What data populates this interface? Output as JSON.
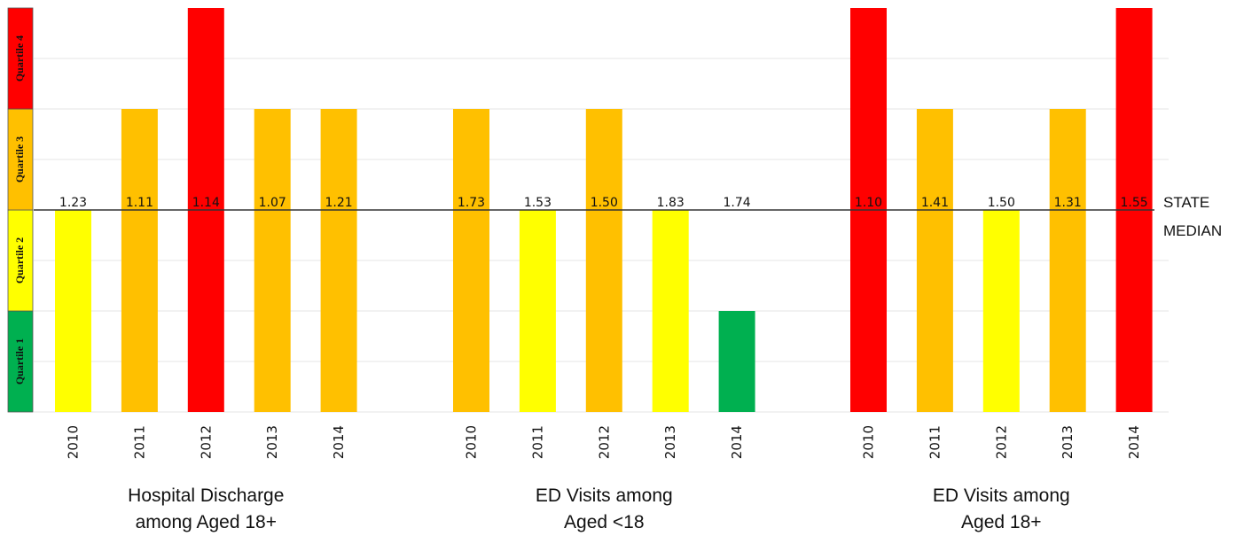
{
  "colors": {
    "quartile_1": "#00b050",
    "quartile_2": "#ffff00",
    "quartile_3": "#ffc000",
    "quartile_4": "#ff0000",
    "gridline": "#e6e6e6",
    "median_line": "#333333"
  },
  "chart_data": {
    "type": "bar",
    "y_axis": "quartile",
    "ylim": [
      0,
      4
    ],
    "grid": true,
    "quartile_labels": [
      "Quartile 1",
      "Quartile 2",
      "Quartile 3",
      "Quartile 4"
    ],
    "median_label": "STATE MEDIAN",
    "median_level": 2,
    "groups": [
      {
        "label_lines": [
          "Hospital Discharge",
          "among Aged 18+"
        ],
        "categories": [
          "2010",
          "2011",
          "2012",
          "2013",
          "2014"
        ],
        "quartiles": [
          2,
          3,
          4,
          3,
          3
        ],
        "values": [
          "1.23",
          "1.11",
          "1.14",
          "1.07",
          "1.21"
        ]
      },
      {
        "label_lines": [
          "ED Visits among",
          "Aged <18"
        ],
        "categories": [
          "2010",
          "2011",
          "2012",
          "2013",
          "2014"
        ],
        "quartiles": [
          3,
          2,
          3,
          2,
          1
        ],
        "values": [
          "1.73",
          "1.53",
          "1.50",
          "1.83",
          "1.74"
        ]
      },
      {
        "label_lines": [
          "ED Visits among",
          "Aged 18+"
        ],
        "categories": [
          "2010",
          "2011",
          "2012",
          "2013",
          "2014"
        ],
        "quartiles": [
          4,
          3,
          2,
          3,
          4
        ],
        "values": [
          "1.10",
          "1.41",
          "1.50",
          "1.31",
          "1.55"
        ]
      }
    ]
  }
}
